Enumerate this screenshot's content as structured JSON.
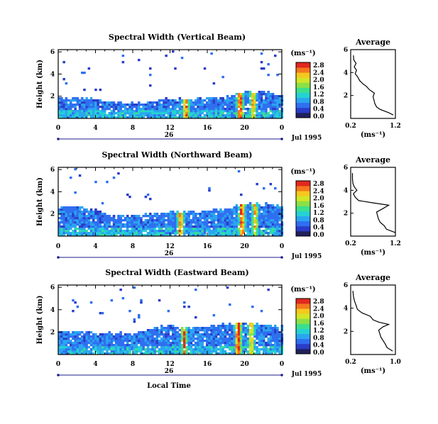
{
  "colors": {
    "colorbar": [
      "#20205a",
      "#2a3cc8",
      "#2f6ff0",
      "#2aa6f0",
      "#25d2d2",
      "#3ce08c",
      "#8ce046",
      "#d2e628",
      "#f5c81e",
      "#f5781e",
      "#e1281e"
    ],
    "profile_line": "#000000",
    "axis": "#000000",
    "time_axis_line": "#1e1e8c"
  },
  "shared": {
    "x_label": "Local Time",
    "x_ticks": [
      "0",
      "4",
      "8",
      "12",
      "16",
      "20",
      "0"
    ],
    "day_label": "26",
    "date_label": "Jul 1995",
    "y_label": "Height (km)",
    "colorbar_unit": "(ms⁻¹)",
    "profile_title": "Average",
    "profile_xlabel": "(ms⁻¹)"
  },
  "chart_data": [
    {
      "type": "heatmap",
      "title": "Spectral Width (Vertical Beam)",
      "xlabel": "Local Time",
      "ylabel": "Height (km)",
      "xlim": [
        0,
        24
      ],
      "x_ticks": [
        0,
        4,
        8,
        12,
        16,
        20,
        24
      ],
      "ylim": [
        0,
        6.2
      ],
      "y_ticks": [
        "6",
        "4",
        "2"
      ],
      "colorbar": {
        "label": "(ms⁻¹)",
        "ticks": [
          "2.8",
          "2.4",
          "2.0",
          "1.6",
          "1.2",
          "0.8",
          "0.4",
          "0.0"
        ],
        "range": [
          0,
          2.8
        ]
      },
      "echo_top_km": [
        [
          0,
          2.0
        ],
        [
          2,
          1.9
        ],
        [
          4,
          1.8
        ],
        [
          6,
          1.6
        ],
        [
          8,
          1.5
        ],
        [
          10,
          1.6
        ],
        [
          12,
          1.9
        ],
        [
          14,
          1.8
        ],
        [
          16,
          1.9
        ],
        [
          18,
          2.0
        ],
        [
          20,
          2.6
        ],
        [
          22,
          2.5
        ],
        [
          24,
          2.3
        ]
      ],
      "enhanced_width_events": [
        {
          "time": 13.6,
          "value": 2.4
        },
        {
          "time": 19.4,
          "value": 2.6
        },
        {
          "time": 20.8,
          "value": 2.2
        }
      ],
      "profile": {
        "title": "Average",
        "xlabel": "(ms⁻¹)",
        "xlim": [
          0.2,
          1.2
        ],
        "x_ticks": [
          "0.2",
          "1.2"
        ],
        "ylim": [
          0,
          6
        ],
        "y_ticks": [
          "6",
          "4",
          "2"
        ],
        "height_km": [
          0.3,
          0.5,
          0.8,
          1.0,
          1.3,
          1.6,
          1.9,
          2.2,
          2.5,
          2.8,
          3.0,
          3.3,
          3.6,
          3.9,
          4.2,
          4.5,
          4.8,
          5.1,
          5.5
        ],
        "values": [
          1.15,
          1.05,
          0.85,
          0.78,
          0.74,
          0.72,
          0.7,
          0.73,
          0.62,
          0.55,
          0.48,
          0.4,
          0.36,
          0.3,
          0.33,
          0.28,
          0.32,
          0.27,
          0.26
        ]
      }
    },
    {
      "type": "heatmap",
      "title": "Spectral Width (Northward Beam)",
      "xlabel": "Local Time",
      "ylabel": "Height (km)",
      "xlim": [
        0,
        24
      ],
      "x_ticks": [
        0,
        4,
        8,
        12,
        16,
        20,
        24
      ],
      "ylim": [
        0,
        6.2
      ],
      "y_ticks": [
        "6",
        "4",
        "2"
      ],
      "colorbar": {
        "label": "(ms⁻¹)",
        "ticks": [
          "2.8",
          "2.4",
          "2.0",
          "1.6",
          "1.2",
          "0.8",
          "0.4",
          "0.0"
        ],
        "range": [
          0,
          2.8
        ]
      },
      "echo_top_km": [
        [
          0,
          2.8
        ],
        [
          2,
          2.7
        ],
        [
          4,
          2.5
        ],
        [
          6,
          2.0
        ],
        [
          8,
          1.9
        ],
        [
          10,
          2.1
        ],
        [
          12,
          2.4
        ],
        [
          14,
          2.3
        ],
        [
          16,
          2.4
        ],
        [
          18,
          2.6
        ],
        [
          20,
          3.0
        ],
        [
          22,
          3.0
        ],
        [
          24,
          2.9
        ]
      ],
      "enhanced_width_events": [
        {
          "time": 13.0,
          "value": 2.4
        },
        {
          "time": 19.6,
          "value": 2.6
        },
        {
          "time": 21.0,
          "value": 2.0
        }
      ],
      "profile": {
        "title": "Average",
        "xlabel": "(ms⁻¹)",
        "xlim": [
          0.2,
          1.2
        ],
        "x_ticks": [
          "0.2",
          "1.2"
        ],
        "ylim": [
          0,
          6
        ],
        "y_ticks": [
          "6",
          "4",
          "2"
        ],
        "height_km": [
          0.3,
          0.6,
          0.9,
          1.2,
          1.5,
          1.8,
          2.1,
          2.4,
          2.7,
          2.9,
          3.1,
          3.4,
          3.7,
          4.0,
          4.3,
          4.6,
          5.0,
          5.5
        ],
        "values": [
          1.2,
          1.0,
          0.95,
          0.86,
          0.82,
          0.8,
          0.78,
          0.92,
          1.05,
          0.7,
          0.38,
          0.3,
          0.26,
          0.34,
          0.28,
          0.25,
          0.24,
          0.24
        ]
      }
    },
    {
      "type": "heatmap",
      "title": "Spectral Width (Eastward Beam)",
      "xlabel": "Local Time",
      "ylabel": "Height (km)",
      "xlim": [
        0,
        24
      ],
      "x_ticks": [
        0,
        4,
        8,
        12,
        16,
        20,
        24
      ],
      "ylim": [
        0,
        6.2
      ],
      "y_ticks": [
        "6",
        "4",
        "2"
      ],
      "colorbar": {
        "label": "(ms⁻¹)",
        "ticks": [
          "2.8",
          "2.4",
          "2.0",
          "1.6",
          "1.2",
          "0.8",
          "0.4",
          "0.0"
        ],
        "range": [
          0,
          2.8
        ]
      },
      "echo_top_km": [
        [
          0,
          2.2
        ],
        [
          2,
          2.2
        ],
        [
          4,
          2.1
        ],
        [
          6,
          2.0
        ],
        [
          8,
          2.0
        ],
        [
          10,
          2.4
        ],
        [
          12,
          2.7
        ],
        [
          14,
          2.5
        ],
        [
          16,
          2.6
        ],
        [
          18,
          2.8
        ],
        [
          20,
          2.9
        ],
        [
          22,
          2.8
        ],
        [
          24,
          2.7
        ]
      ],
      "enhanced_width_events": [
        {
          "time": 13.4,
          "value": 2.2
        },
        {
          "time": 19.2,
          "value": 2.7
        },
        {
          "time": 20.6,
          "value": 2.1
        }
      ],
      "profile": {
        "title": "Average",
        "xlabel": "(ms⁻¹)",
        "xlim": [
          0.2,
          1.0
        ],
        "x_ticks": [
          "0.2",
          "1.0"
        ],
        "ylim": [
          0,
          6
        ],
        "y_ticks": [
          "6",
          "4",
          "2"
        ],
        "height_km": [
          0.3,
          0.6,
          0.9,
          1.2,
          1.5,
          1.8,
          2.1,
          2.4,
          2.6,
          2.8,
          3.0,
          3.3,
          3.6,
          3.9,
          4.2,
          4.6,
          5.0,
          5.5
        ],
        "values": [
          0.95,
          0.85,
          0.82,
          0.78,
          0.74,
          0.72,
          0.7,
          0.78,
          0.88,
          0.7,
          0.6,
          0.55,
          0.4,
          0.32,
          0.3,
          0.27,
          0.25,
          0.24
        ]
      }
    }
  ]
}
